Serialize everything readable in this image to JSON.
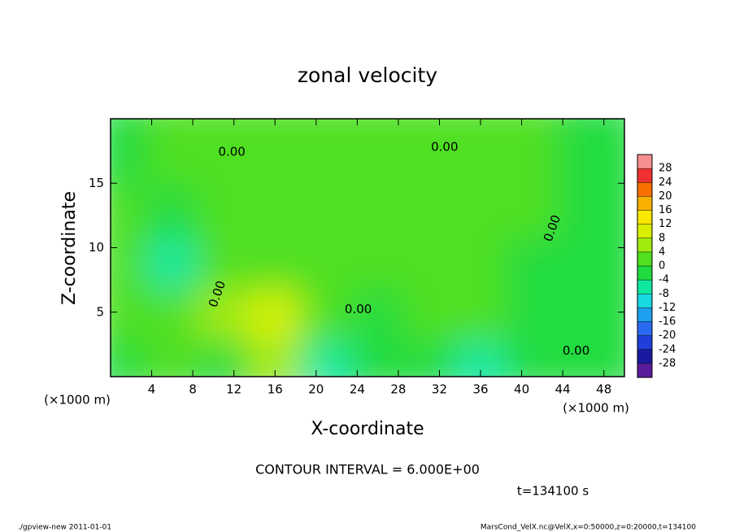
{
  "chart_data": {
    "type": "contour",
    "title": "zonal velocity",
    "xlabel": "X-coordinate",
    "ylabel": "Z-coordinate",
    "xunit": "(×1000 m)",
    "yunit": "(×1000 m)",
    "xlim": [
      0,
      50
    ],
    "ylim": [
      0,
      20
    ],
    "xticks": [
      4,
      8,
      12,
      16,
      20,
      24,
      28,
      32,
      36,
      40,
      44,
      48
    ],
    "yticks": [
      5,
      10,
      15
    ],
    "x": [
      2.5,
      7.5,
      12.5,
      17.5,
      22.5,
      27.5,
      32.5,
      37.5,
      42.5,
      47.5
    ],
    "y": [
      2,
      6,
      10,
      14,
      18
    ],
    "z": [
      [
        -2,
        2,
        -2,
        4,
        -6,
        -2,
        -4,
        -8,
        -4,
        -2
      ],
      [
        2,
        2,
        6,
        8,
        2,
        -2,
        2,
        2,
        -2,
        -2
      ],
      [
        2,
        -6,
        2,
        2,
        2,
        2,
        2,
        2,
        -2,
        -2
      ],
      [
        2,
        -4,
        2,
        2,
        2,
        2,
        2,
        2,
        2,
        -2
      ],
      [
        -2,
        2,
        2,
        2,
        0,
        2,
        2,
        2,
        2,
        -2
      ]
    ],
    "colorbar": {
      "clim": [
        -32,
        32
      ],
      "levels": [
        28,
        24,
        20,
        16,
        12,
        8,
        4,
        0,
        -4,
        -8,
        -12,
        -16,
        -20,
        -24,
        -28
      ],
      "colors": [
        "#5a1a9a",
        "#1a1aa0",
        "#1f3fd8",
        "#2a6af0",
        "#1ea0f0",
        "#18d8e0",
        "#10e8a0",
        "#20dc40",
        "#50e020",
        "#a0ea10",
        "#d8f000",
        "#f8e800",
        "#f8b000",
        "#f87000",
        "#f03030",
        "#f89090"
      ]
    },
    "contour_labels": [
      {
        "text": "0.00",
        "x": 11.8,
        "y": 17.4
      },
      {
        "text": "0.00",
        "x": 32.5,
        "y": 17.8
      },
      {
        "text": "0.00",
        "x": 10.4,
        "y": 6.4
      },
      {
        "text": "0.00",
        "x": 24.1,
        "y": 5.2
      },
      {
        "text": "0.00",
        "x": 45.3,
        "y": 2.0
      },
      {
        "text": "0.00",
        "x": 43.0,
        "y": 11.5
      }
    ],
    "contour_interval": "CONTOUR INTERVAL = 6.000E+00",
    "time": "t=134100 s",
    "footer_left": "./gpview-new  2011-01-01",
    "footer_right": "MarsCond_VelX.nc@VelX,x=0:50000,z=0:20000,t=134100"
  }
}
